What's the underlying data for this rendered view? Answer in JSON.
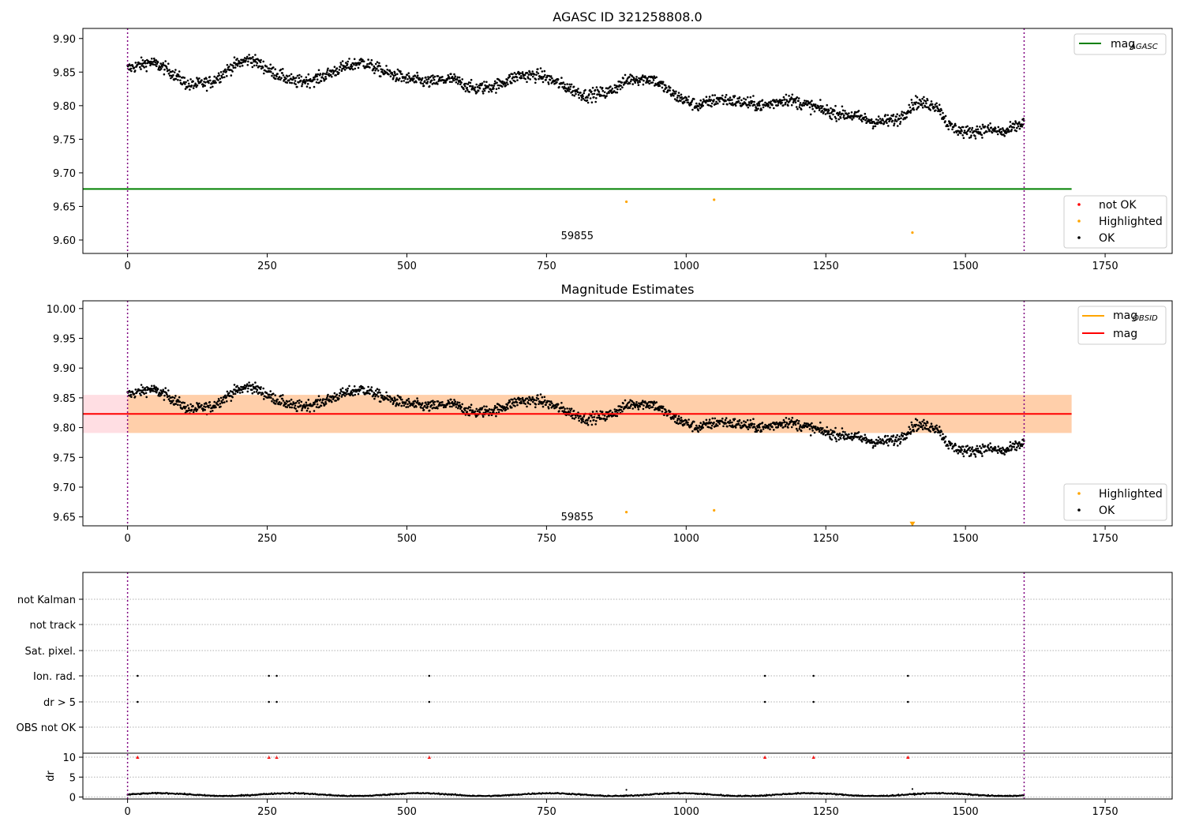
{
  "chart_data": [
    {
      "type": "scatter",
      "title": "AGASC ID 321258808.0",
      "xlim": [
        -80,
        1870
      ],
      "ylim": [
        9.58,
        9.915
      ],
      "xticks": [
        "0",
        "250",
        "500",
        "750",
        "1000",
        "1250",
        "1500",
        "1750"
      ],
      "yticks": [
        "9.60",
        "9.65",
        "9.70",
        "9.75",
        "9.80",
        "9.85",
        "9.90"
      ],
      "annotation": "59855",
      "mag_agasc": 9.676,
      "obs_bounds": [
        0,
        1605
      ],
      "legends": {
        "lines": [
          {
            "name": "mag",
            "sub": "AGASC",
            "color": "#008000"
          }
        ],
        "markers": [
          {
            "name": "not OK",
            "color": "#ff0000"
          },
          {
            "name": "Highlighted",
            "color": "#ffa500"
          },
          {
            "name": "OK",
            "color": "#000000"
          }
        ]
      },
      "highlighted": [
        [
          893,
          9.657
        ],
        [
          1050,
          9.66
        ],
        [
          1405,
          9.611
        ]
      ],
      "series_trend": [
        [
          0,
          9.855
        ],
        [
          40,
          9.865
        ],
        [
          70,
          9.855
        ],
        [
          110,
          9.83
        ],
        [
          150,
          9.835
        ],
        [
          190,
          9.86
        ],
        [
          220,
          9.87
        ],
        [
          260,
          9.85
        ],
        [
          300,
          9.835
        ],
        [
          340,
          9.84
        ],
        [
          380,
          9.855
        ],
        [
          420,
          9.865
        ],
        [
          460,
          9.85
        ],
        [
          500,
          9.84
        ],
        [
          540,
          9.835
        ],
        [
          580,
          9.84
        ],
        [
          620,
          9.825
        ],
        [
          660,
          9.83
        ],
        [
          700,
          9.845
        ],
        [
          740,
          9.845
        ],
        [
          780,
          9.83
        ],
        [
          820,
          9.815
        ],
        [
          860,
          9.82
        ],
        [
          900,
          9.84
        ],
        [
          940,
          9.84
        ],
        [
          980,
          9.815
        ],
        [
          1020,
          9.8
        ],
        [
          1060,
          9.81
        ],
        [
          1100,
          9.805
        ],
        [
          1140,
          9.8
        ],
        [
          1180,
          9.81
        ],
        [
          1220,
          9.8
        ],
        [
          1260,
          9.79
        ],
        [
          1300,
          9.785
        ],
        [
          1340,
          9.775
        ],
        [
          1380,
          9.78
        ],
        [
          1410,
          9.805
        ],
        [
          1450,
          9.8
        ],
        [
          1470,
          9.77
        ],
        [
          1500,
          9.76
        ],
        [
          1540,
          9.765
        ],
        [
          1570,
          9.76
        ],
        [
          1605,
          9.775
        ]
      ]
    },
    {
      "type": "scatter",
      "title": "Magnitude Estimates",
      "xlim": [
        -80,
        1870
      ],
      "ylim": [
        9.635,
        10.013
      ],
      "xticks": [
        "0",
        "250",
        "500",
        "750",
        "1000",
        "1250",
        "1500",
        "1750"
      ],
      "yticks": [
        "9.65",
        "9.70",
        "9.75",
        "9.80",
        "9.85",
        "9.90",
        "9.95",
        "10.00"
      ],
      "annotation": "59855",
      "mag": 9.823,
      "band": [
        9.791,
        9.855
      ],
      "obs_bounds": [
        0,
        1605
      ],
      "legends": {
        "lines": [
          {
            "name": "mag",
            "sub": "OBSID",
            "color": "#ffa500"
          },
          {
            "name": "mag",
            "sub": "",
            "color": "#ff0000"
          }
        ],
        "markers": [
          {
            "name": "Highlighted",
            "color": "#ffa500"
          },
          {
            "name": "OK",
            "color": "#000000"
          }
        ]
      },
      "highlighted": [
        [
          893,
          9.658
        ],
        [
          1050,
          9.661
        ]
      ],
      "down_marker": [
        1405,
        9.638
      ]
    },
    {
      "type": "scatter",
      "title": "",
      "xlim": [
        -80,
        1870
      ],
      "xticks": [
        "0",
        "250",
        "500",
        "750",
        "1000",
        "1250",
        "1500",
        "1750"
      ],
      "flag_labels": [
        "not Kalman",
        "not track",
        "Sat. pixel.",
        "Ion. rad.",
        "dr > 5",
        "OBS not OK"
      ],
      "flag_points": {
        "Ion. rad.": [
          18,
          253,
          267,
          540,
          1141,
          1228,
          1397
        ],
        "dr > 5": [
          18,
          253,
          267,
          540,
          1141,
          1228,
          1397
        ]
      },
      "dr_ylabel": "dr",
      "dr_yticks": [
        "0",
        "5",
        "10"
      ],
      "dr_ylim": [
        -0.5,
        11
      ],
      "dr_high_markers": [
        18,
        253,
        267,
        540,
        1141,
        1228,
        1397
      ],
      "dr_baseline": 0.6
    }
  ]
}
